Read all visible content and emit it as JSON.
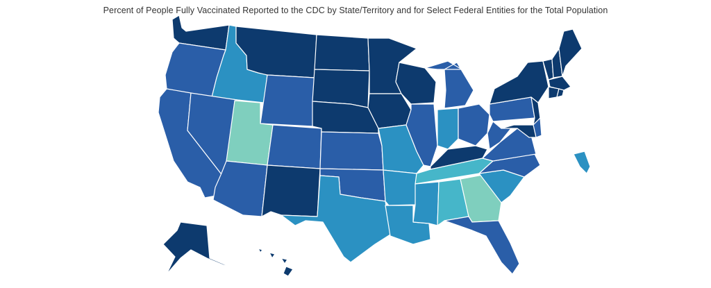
{
  "title": "Percent of People Fully Vaccinated Reported to the CDC by State/Territory and for Select Federal Entities for the Total Population",
  "colors": {
    "darkest": "#0d3a6e",
    "dark": "#2a5ea8",
    "mid": "#2b91c2",
    "light": "#46b6c9",
    "lightest": "#7fcfbe"
  },
  "states": [
    {
      "id": "WA",
      "tone": "darkest"
    },
    {
      "id": "OR",
      "tone": "dark"
    },
    {
      "id": "CA",
      "tone": "dark"
    },
    {
      "id": "ID",
      "tone": "mid"
    },
    {
      "id": "NV",
      "tone": "dark"
    },
    {
      "id": "MT",
      "tone": "darkest"
    },
    {
      "id": "WY",
      "tone": "dark"
    },
    {
      "id": "UT",
      "tone": "lightest"
    },
    {
      "id": "AZ",
      "tone": "dark"
    },
    {
      "id": "CO",
      "tone": "dark"
    },
    {
      "id": "NM",
      "tone": "darkest"
    },
    {
      "id": "ND",
      "tone": "darkest"
    },
    {
      "id": "SD",
      "tone": "darkest"
    },
    {
      "id": "NE",
      "tone": "darkest"
    },
    {
      "id": "KS",
      "tone": "dark"
    },
    {
      "id": "OK",
      "tone": "dark"
    },
    {
      "id": "TX",
      "tone": "mid"
    },
    {
      "id": "MN",
      "tone": "darkest"
    },
    {
      "id": "IA",
      "tone": "darkest"
    },
    {
      "id": "MO",
      "tone": "mid"
    },
    {
      "id": "AR",
      "tone": "mid"
    },
    {
      "id": "LA",
      "tone": "mid"
    },
    {
      "id": "WI",
      "tone": "darkest"
    },
    {
      "id": "IL",
      "tone": "dark"
    },
    {
      "id": "MI",
      "tone": "dark"
    },
    {
      "id": "IN",
      "tone": "mid"
    },
    {
      "id": "OH",
      "tone": "dark"
    },
    {
      "id": "KY",
      "tone": "darkest"
    },
    {
      "id": "TN",
      "tone": "light"
    },
    {
      "id": "MS",
      "tone": "mid"
    },
    {
      "id": "AL",
      "tone": "light"
    },
    {
      "id": "GA",
      "tone": "lightest"
    },
    {
      "id": "FL",
      "tone": "dark"
    },
    {
      "id": "SC",
      "tone": "mid"
    },
    {
      "id": "NC",
      "tone": "dark"
    },
    {
      "id": "VA",
      "tone": "dark"
    },
    {
      "id": "WV",
      "tone": "dark"
    },
    {
      "id": "PA",
      "tone": "dark"
    },
    {
      "id": "NY",
      "tone": "darkest"
    },
    {
      "id": "VT",
      "tone": "darkest"
    },
    {
      "id": "NH",
      "tone": "darkest"
    },
    {
      "id": "ME",
      "tone": "darkest"
    },
    {
      "id": "MA",
      "tone": "darkest"
    },
    {
      "id": "CT",
      "tone": "darkest"
    },
    {
      "id": "RI",
      "tone": "darkest"
    },
    {
      "id": "NJ",
      "tone": "darkest"
    },
    {
      "id": "DE",
      "tone": "dark"
    },
    {
      "id": "MD",
      "tone": "darkest"
    },
    {
      "id": "AK",
      "tone": "darkest"
    },
    {
      "id": "HI",
      "tone": "darkest"
    },
    {
      "id": "PR",
      "tone": "mid"
    }
  ]
}
